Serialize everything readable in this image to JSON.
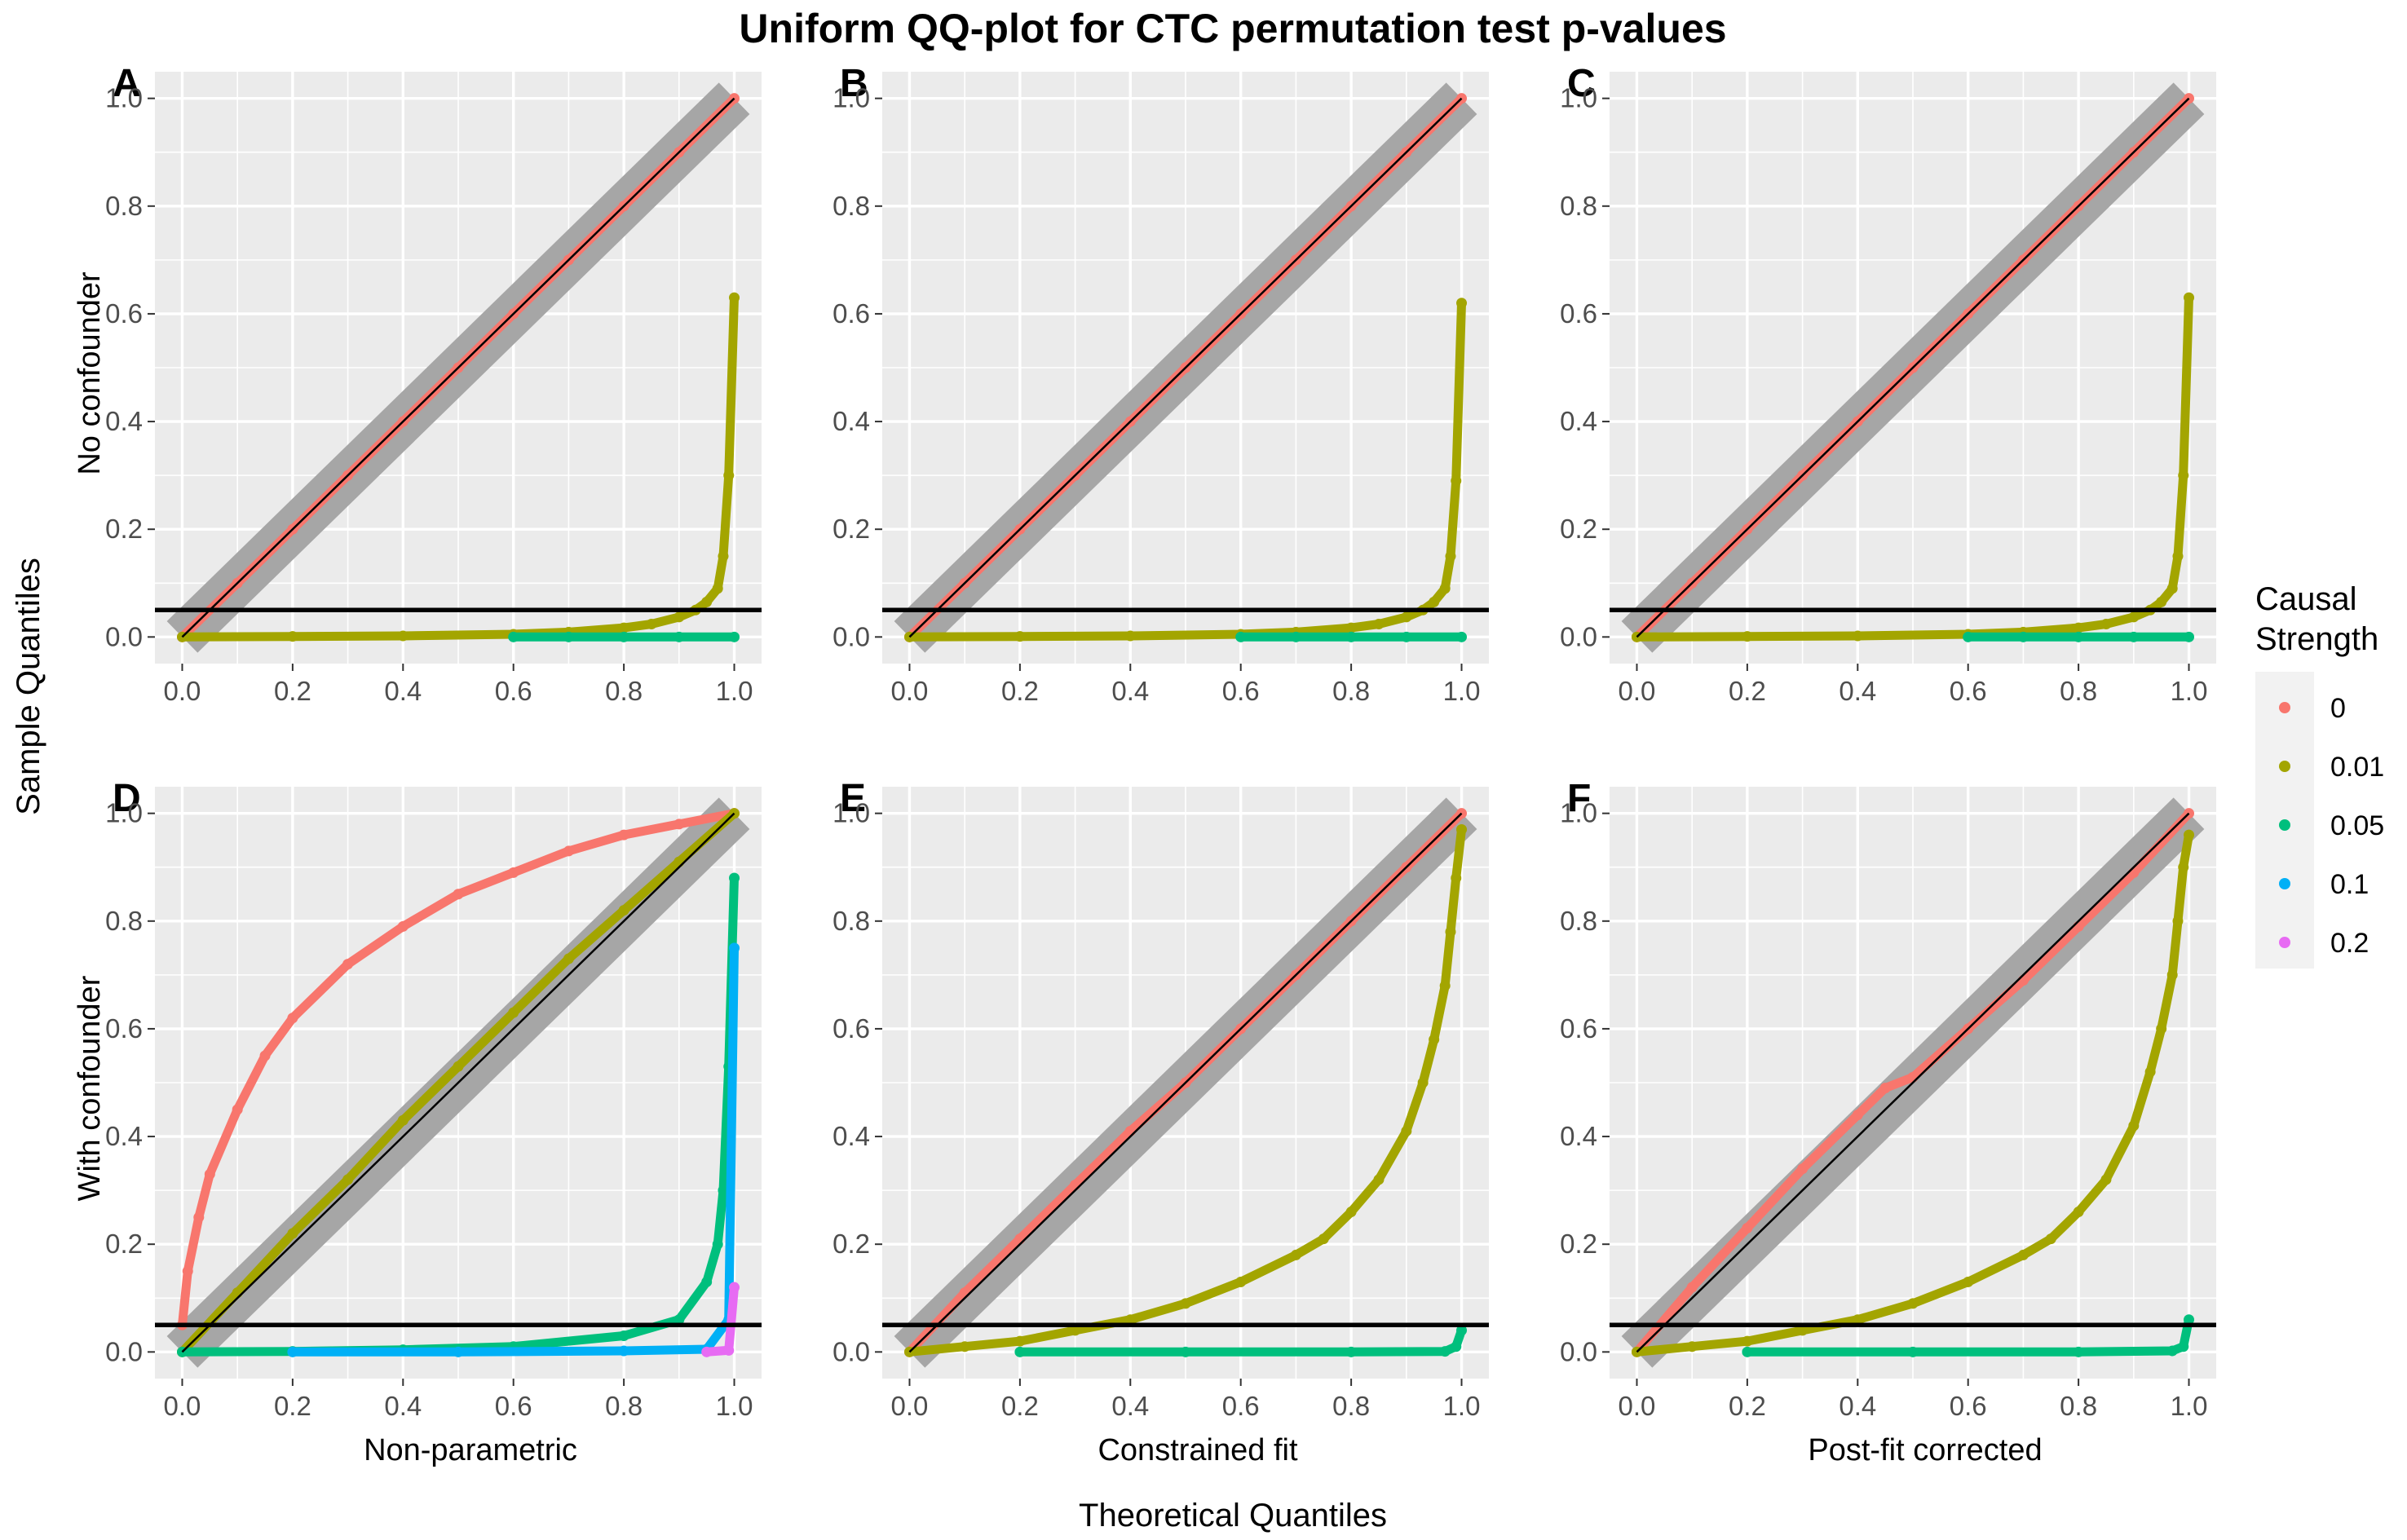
{
  "title": "Uniform QQ-plot for CTC permutation test p-values",
  "x_axis_title": "Theoretical Quantiles",
  "y_axis_title": "Sample Quantiles",
  "row_labels": [
    "No confounder",
    "With confounder"
  ],
  "column_labels": [
    "Non-parametric",
    "Constrained fit",
    "Post-fit corrected"
  ],
  "legend": {
    "title_line1": "Causal",
    "title_line2": "Strength",
    "entries": [
      {
        "label": "0",
        "color": "#F8766D"
      },
      {
        "label": "0.01",
        "color": "#A3A500"
      },
      {
        "label": "0.05",
        "color": "#00BF7D"
      },
      {
        "label": "0.1",
        "color": "#00B0F6"
      },
      {
        "label": "0.2",
        "color": "#E76BF3"
      }
    ],
    "placement": "right"
  },
  "colors": {
    "panel_background": "#EBEBEB",
    "grid": "#FFFFFF",
    "confidence_band": "#A6A6A6",
    "reference_line": "#000000"
  },
  "chart_data": [
    {
      "panel": "A",
      "type": "scatter",
      "row": "No confounder",
      "column": "Non-parametric",
      "xlim": [
        0,
        1
      ],
      "ylim": [
        0,
        1
      ],
      "x_ticks": [
        "0.0",
        "0.2",
        "0.4",
        "0.6",
        "0.8",
        "1.0"
      ],
      "y_ticks": [
        "0.0",
        "0.2",
        "0.4",
        "0.6",
        "0.8",
        "1.0"
      ],
      "hline": 0.05,
      "series": [
        {
          "name": "0",
          "x": [
            0,
            0.1,
            0.2,
            0.3,
            0.4,
            0.5,
            0.6,
            0.7,
            0.8,
            0.9,
            1.0
          ],
          "y": [
            0,
            0.1,
            0.2,
            0.3,
            0.4,
            0.5,
            0.6,
            0.7,
            0.8,
            0.9,
            1.0
          ]
        },
        {
          "name": "0.01",
          "x": [
            0,
            0.2,
            0.4,
            0.6,
            0.7,
            0.8,
            0.85,
            0.9,
            0.93,
            0.95,
            0.97,
            0.98,
            0.99,
            1.0
          ],
          "y": [
            0,
            0.001,
            0.002,
            0.005,
            0.009,
            0.017,
            0.024,
            0.037,
            0.05,
            0.065,
            0.09,
            0.15,
            0.3,
            0.63
          ]
        },
        {
          "name": "0.05",
          "x": [
            0.6,
            0.7,
            0.8,
            0.9,
            1.0
          ],
          "y": [
            0,
            0,
            0,
            0,
            0
          ]
        }
      ]
    },
    {
      "panel": "B",
      "type": "scatter",
      "row": "No confounder",
      "column": "Constrained fit",
      "xlim": [
        0,
        1
      ],
      "ylim": [
        0,
        1
      ],
      "x_ticks": [
        "0.0",
        "0.2",
        "0.4",
        "0.6",
        "0.8",
        "1.0"
      ],
      "y_ticks": [
        "0.0",
        "0.2",
        "0.4",
        "0.6",
        "0.8",
        "1.0"
      ],
      "hline": 0.05,
      "series": [
        {
          "name": "0",
          "x": [
            0,
            0.1,
            0.2,
            0.3,
            0.4,
            0.5,
            0.6,
            0.7,
            0.8,
            0.9,
            1.0
          ],
          "y": [
            0,
            0.1,
            0.2,
            0.3,
            0.4,
            0.5,
            0.6,
            0.7,
            0.8,
            0.9,
            1.0
          ]
        },
        {
          "name": "0.01",
          "x": [
            0,
            0.2,
            0.4,
            0.6,
            0.7,
            0.8,
            0.85,
            0.9,
            0.93,
            0.95,
            0.97,
            0.98,
            0.99,
            1.0
          ],
          "y": [
            0,
            0.001,
            0.002,
            0.005,
            0.009,
            0.017,
            0.024,
            0.037,
            0.05,
            0.065,
            0.09,
            0.15,
            0.29,
            0.62
          ]
        },
        {
          "name": "0.05",
          "x": [
            0.6,
            0.7,
            0.8,
            0.9,
            1.0
          ],
          "y": [
            0,
            0,
            0,
            0,
            0
          ]
        }
      ]
    },
    {
      "panel": "C",
      "type": "scatter",
      "row": "No confounder",
      "column": "Post-fit corrected",
      "xlim": [
        0,
        1
      ],
      "ylim": [
        0,
        1
      ],
      "x_ticks": [
        "0.0",
        "0.2",
        "0.4",
        "0.6",
        "0.8",
        "1.0"
      ],
      "y_ticks": [
        "0.0",
        "0.2",
        "0.4",
        "0.6",
        "0.8",
        "1.0"
      ],
      "hline": 0.05,
      "series": [
        {
          "name": "0",
          "x": [
            0,
            0.1,
            0.2,
            0.3,
            0.4,
            0.5,
            0.6,
            0.7,
            0.8,
            0.9,
            1.0
          ],
          "y": [
            0,
            0.1,
            0.2,
            0.3,
            0.4,
            0.5,
            0.6,
            0.7,
            0.8,
            0.9,
            1.0
          ]
        },
        {
          "name": "0.01",
          "x": [
            0,
            0.2,
            0.4,
            0.6,
            0.7,
            0.8,
            0.85,
            0.9,
            0.93,
            0.95,
            0.97,
            0.98,
            0.99,
            1.0
          ],
          "y": [
            0,
            0.001,
            0.002,
            0.005,
            0.009,
            0.017,
            0.024,
            0.037,
            0.05,
            0.065,
            0.09,
            0.15,
            0.3,
            0.63
          ]
        },
        {
          "name": "0.05",
          "x": [
            0.6,
            0.7,
            0.8,
            0.9,
            1.0
          ],
          "y": [
            0,
            0,
            0,
            0,
            0
          ]
        }
      ]
    },
    {
      "panel": "D",
      "type": "scatter",
      "row": "With confounder",
      "column": "Non-parametric",
      "xlim": [
        0,
        1
      ],
      "ylim": [
        0,
        1
      ],
      "x_ticks": [
        "0.0",
        "0.2",
        "0.4",
        "0.6",
        "0.8",
        "1.0"
      ],
      "y_ticks": [
        "0.0",
        "0.2",
        "0.4",
        "0.6",
        "0.8",
        "1.0"
      ],
      "hline": 0.05,
      "series": [
        {
          "name": "0",
          "x": [
            0,
            0.01,
            0.03,
            0.05,
            0.1,
            0.15,
            0.2,
            0.3,
            0.4,
            0.5,
            0.6,
            0.7,
            0.8,
            0.9,
            1.0
          ],
          "y": [
            0.05,
            0.15,
            0.25,
            0.33,
            0.45,
            0.55,
            0.62,
            0.72,
            0.79,
            0.85,
            0.89,
            0.93,
            0.96,
            0.98,
            1.0
          ]
        },
        {
          "name": "0.01",
          "x": [
            0,
            0.1,
            0.2,
            0.3,
            0.4,
            0.5,
            0.6,
            0.7,
            0.8,
            0.9,
            1.0
          ],
          "y": [
            0,
            0.11,
            0.22,
            0.32,
            0.43,
            0.53,
            0.63,
            0.73,
            0.82,
            0.91,
            1.0
          ]
        },
        {
          "name": "0.05",
          "x": [
            0,
            0.2,
            0.4,
            0.6,
            0.8,
            0.9,
            0.95,
            0.97,
            0.98,
            0.99,
            1.0
          ],
          "y": [
            0,
            0.001,
            0.004,
            0.01,
            0.03,
            0.06,
            0.13,
            0.2,
            0.3,
            0.53,
            0.88
          ]
        },
        {
          "name": "0.1",
          "x": [
            0.2,
            0.5,
            0.8,
            0.95,
            0.99,
            1.0
          ],
          "y": [
            0,
            0,
            0.002,
            0.005,
            0.06,
            0.75
          ]
        },
        {
          "name": "0.2",
          "x": [
            0.95,
            0.99,
            1.0
          ],
          "y": [
            0,
            0.003,
            0.12
          ]
        }
      ]
    },
    {
      "panel": "E",
      "type": "scatter",
      "row": "With confounder",
      "column": "Constrained fit",
      "xlim": [
        0,
        1
      ],
      "ylim": [
        0,
        1
      ],
      "x_ticks": [
        "0.0",
        "0.2",
        "0.4",
        "0.6",
        "0.8",
        "1.0"
      ],
      "y_ticks": [
        "0.0",
        "0.2",
        "0.4",
        "0.6",
        "0.8",
        "1.0"
      ],
      "hline": 0.05,
      "series": [
        {
          "name": "0",
          "x": [
            0,
            0.1,
            0.2,
            0.3,
            0.4,
            0.5,
            0.6,
            0.7,
            0.8,
            0.9,
            1.0
          ],
          "y": [
            0,
            0.11,
            0.21,
            0.31,
            0.41,
            0.5,
            0.6,
            0.7,
            0.8,
            0.9,
            1.0
          ]
        },
        {
          "name": "0.01",
          "x": [
            0,
            0.1,
            0.2,
            0.3,
            0.4,
            0.5,
            0.6,
            0.7,
            0.75,
            0.8,
            0.85,
            0.9,
            0.93,
            0.95,
            0.97,
            0.98,
            0.99,
            1.0
          ],
          "y": [
            0,
            0.01,
            0.02,
            0.04,
            0.06,
            0.09,
            0.13,
            0.18,
            0.21,
            0.26,
            0.32,
            0.41,
            0.5,
            0.58,
            0.68,
            0.78,
            0.88,
            0.97
          ]
        },
        {
          "name": "0.05",
          "x": [
            0.2,
            0.5,
            0.8,
            0.97,
            0.99,
            1.0
          ],
          "y": [
            0,
            0,
            0,
            0.001,
            0.01,
            0.04
          ]
        }
      ]
    },
    {
      "panel": "F",
      "type": "scatter",
      "row": "With confounder",
      "column": "Post-fit corrected",
      "xlim": [
        0,
        1
      ],
      "ylim": [
        0,
        1
      ],
      "x_ticks": [
        "0.0",
        "0.2",
        "0.4",
        "0.6",
        "0.8",
        "1.0"
      ],
      "y_ticks": [
        "0.0",
        "0.2",
        "0.4",
        "0.6",
        "0.8",
        "1.0"
      ],
      "hline": 0.05,
      "series": [
        {
          "name": "0",
          "x": [
            0,
            0.1,
            0.2,
            0.3,
            0.4,
            0.45,
            0.5,
            0.6,
            0.7,
            0.8,
            0.9,
            1.0
          ],
          "y": [
            0,
            0.12,
            0.23,
            0.34,
            0.44,
            0.49,
            0.51,
            0.6,
            0.69,
            0.79,
            0.89,
            1.0
          ]
        },
        {
          "name": "0.01",
          "x": [
            0,
            0.1,
            0.2,
            0.3,
            0.4,
            0.5,
            0.6,
            0.7,
            0.75,
            0.8,
            0.85,
            0.9,
            0.93,
            0.95,
            0.97,
            0.98,
            0.99,
            1.0
          ],
          "y": [
            0,
            0.01,
            0.02,
            0.04,
            0.06,
            0.09,
            0.13,
            0.18,
            0.21,
            0.26,
            0.32,
            0.42,
            0.52,
            0.6,
            0.7,
            0.8,
            0.9,
            0.96
          ]
        },
        {
          "name": "0.05",
          "x": [
            0.2,
            0.5,
            0.8,
            0.97,
            0.99,
            1.0
          ],
          "y": [
            0,
            0,
            0,
            0.002,
            0.01,
            0.06
          ]
        }
      ]
    }
  ]
}
